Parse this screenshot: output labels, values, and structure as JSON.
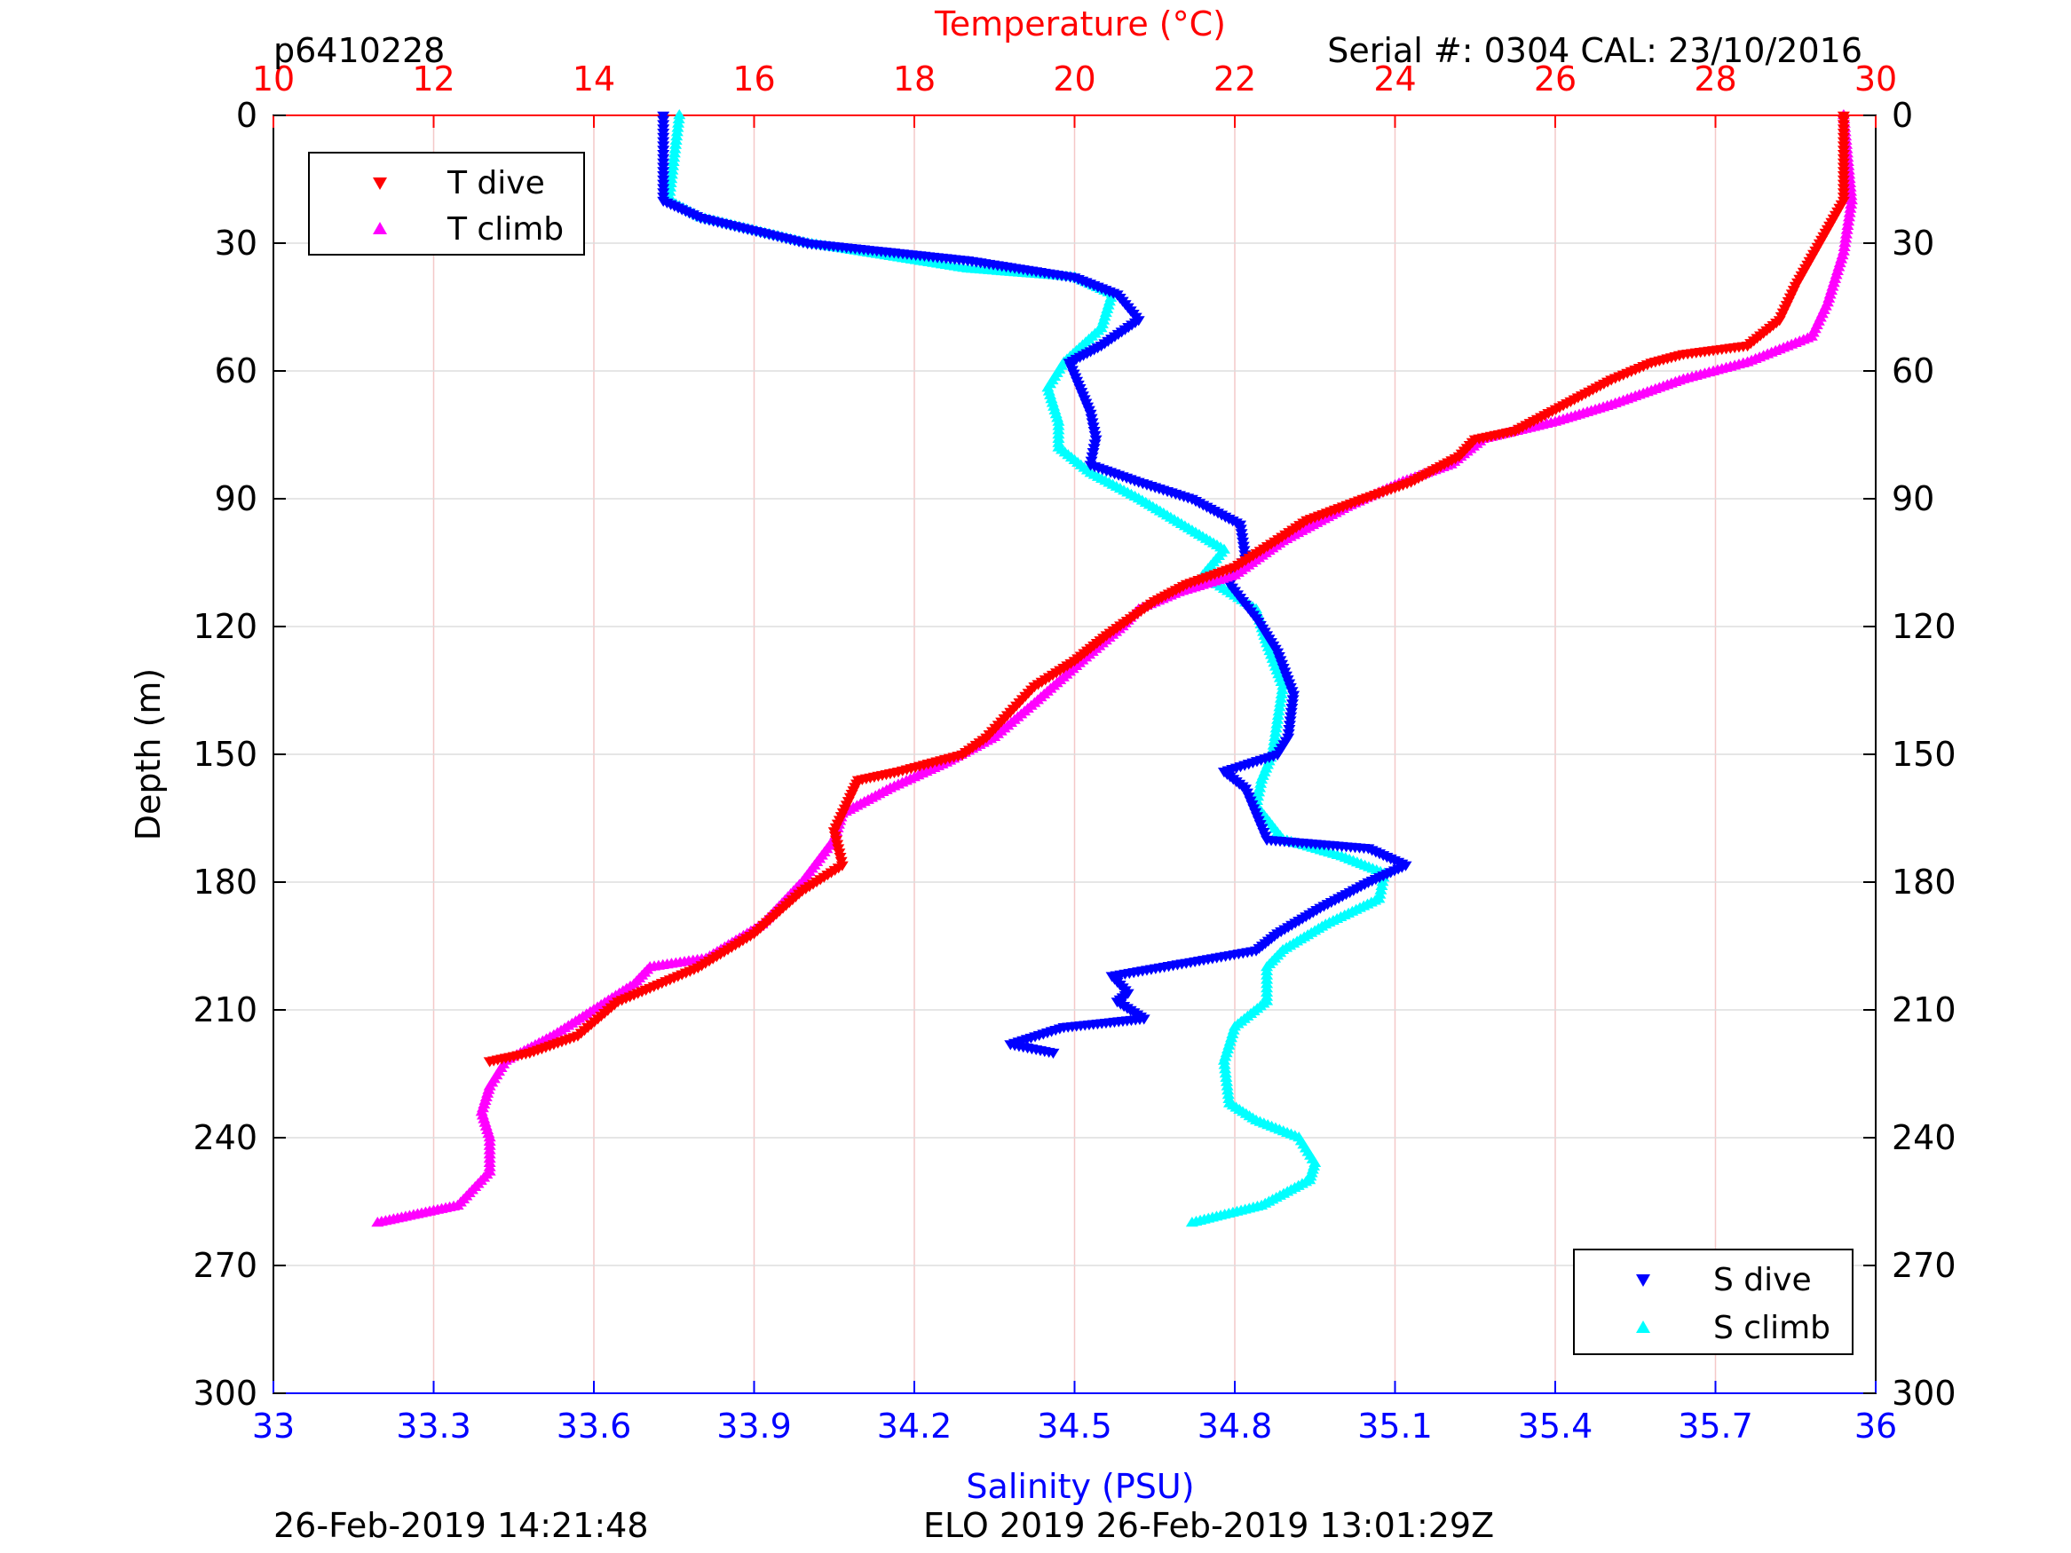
{
  "header": {
    "id": "p6410228",
    "serial": "Serial #: 0304  CAL: 23/10/2016"
  },
  "footer": {
    "left": "26-Feb-2019 14:21:48",
    "center": "ELO 2019 26-Feb-2019 13:01:29Z"
  },
  "colors": {
    "t_dive": "#ff0000",
    "t_climb": "#ff00ff",
    "s_dive": "#0000ff",
    "s_climb": "#00ffff",
    "temp_axis": "#ff0000",
    "sal_axis": "#0000ff"
  },
  "chart_data": {
    "type": "scatter",
    "axes": {
      "temperature": {
        "label": "Temperature (°C)",
        "range": [
          10,
          30
        ],
        "ticks": [
          "10",
          "12",
          "14",
          "16",
          "18",
          "20",
          "22",
          "24",
          "26",
          "28",
          "30"
        ],
        "position": "top"
      },
      "salinity": {
        "label": "Salinity (PSU)",
        "range": [
          33,
          36
        ],
        "ticks": [
          "33",
          "33.3",
          "33.6",
          "33.9",
          "34.2",
          "34.5",
          "34.8",
          "35.1",
          "35.4",
          "35.7",
          "36"
        ],
        "position": "bottom"
      },
      "depth": {
        "label": "Depth (m)",
        "range": [
          0,
          300
        ],
        "reversed": true,
        "ticks": [
          "0",
          "30",
          "60",
          "90",
          "120",
          "150",
          "180",
          "210",
          "240",
          "270",
          "300"
        ]
      }
    },
    "grid": {
      "temperature_vertical": true,
      "depth_horizontal": true
    },
    "legends": [
      {
        "placement": "top-left",
        "entries": [
          "T dive",
          "T climb"
        ]
      },
      {
        "placement": "bottom-right",
        "entries": [
          "S dive",
          "S climb"
        ]
      }
    ],
    "series": [
      {
        "name": "T dive",
        "axis": "temperature",
        "marker": "triangle-down",
        "points": [
          [
            29.6,
            0
          ],
          [
            29.6,
            20
          ],
          [
            29.3,
            30
          ],
          [
            29.0,
            40
          ],
          [
            28.8,
            48
          ],
          [
            28.4,
            54
          ],
          [
            27.6,
            56
          ],
          [
            27.2,
            58
          ],
          [
            26.7,
            62
          ],
          [
            26.1,
            68
          ],
          [
            25.5,
            74
          ],
          [
            25.0,
            76
          ],
          [
            24.8,
            80
          ],
          [
            24.2,
            86
          ],
          [
            23.6,
            90
          ],
          [
            22.9,
            95
          ],
          [
            22.5,
            100
          ],
          [
            22.0,
            106
          ],
          [
            21.4,
            110
          ],
          [
            21.0,
            114
          ],
          [
            20.7,
            118
          ],
          [
            20.4,
            122
          ],
          [
            20.0,
            128
          ],
          [
            19.5,
            134
          ],
          [
            19.2,
            140
          ],
          [
            18.9,
            146
          ],
          [
            18.6,
            150
          ],
          [
            17.8,
            154
          ],
          [
            17.3,
            156
          ],
          [
            17.2,
            160
          ],
          [
            17.0,
            168
          ],
          [
            17.1,
            176
          ],
          [
            16.6,
            182
          ],
          [
            16.0,
            192
          ],
          [
            15.3,
            200
          ],
          [
            14.8,
            204
          ],
          [
            14.3,
            208
          ],
          [
            13.8,
            216
          ],
          [
            13.2,
            220
          ],
          [
            12.7,
            222
          ]
        ]
      },
      {
        "name": "T climb",
        "axis": "temperature",
        "marker": "triangle-up",
        "points": [
          [
            29.6,
            0
          ],
          [
            29.7,
            20
          ],
          [
            29.6,
            32
          ],
          [
            29.4,
            44
          ],
          [
            29.2,
            52
          ],
          [
            28.4,
            58
          ],
          [
            27.6,
            62
          ],
          [
            26.7,
            68
          ],
          [
            26.0,
            72
          ],
          [
            25.1,
            76
          ],
          [
            24.7,
            82
          ],
          [
            24.1,
            86
          ],
          [
            23.4,
            92
          ],
          [
            22.6,
            100
          ],
          [
            22.0,
            108
          ],
          [
            21.3,
            112
          ],
          [
            20.8,
            116
          ],
          [
            20.6,
            120
          ],
          [
            20.1,
            128
          ],
          [
            19.5,
            138
          ],
          [
            19.0,
            146
          ],
          [
            18.4,
            152
          ],
          [
            17.7,
            158
          ],
          [
            17.1,
            164
          ],
          [
            17.0,
            170
          ],
          [
            16.6,
            180
          ],
          [
            16.1,
            190
          ],
          [
            15.4,
            198
          ],
          [
            14.7,
            200
          ],
          [
            14.5,
            204
          ],
          [
            14.0,
            210
          ],
          [
            13.5,
            216
          ],
          [
            12.9,
            222
          ],
          [
            12.7,
            228
          ],
          [
            12.6,
            234
          ],
          [
            12.7,
            240
          ],
          [
            12.7,
            248
          ],
          [
            12.3,
            256
          ],
          [
            11.8,
            258
          ],
          [
            11.3,
            260
          ]
        ]
      },
      {
        "name": "S dive",
        "axis": "salinity",
        "marker": "triangle-down",
        "points": [
          [
            33.73,
            0
          ],
          [
            33.73,
            20
          ],
          [
            33.8,
            24
          ],
          [
            34.0,
            30
          ],
          [
            34.3,
            34
          ],
          [
            34.5,
            38
          ],
          [
            34.58,
            42
          ],
          [
            34.62,
            48
          ],
          [
            34.55,
            54
          ],
          [
            34.49,
            58
          ],
          [
            34.51,
            64
          ],
          [
            34.53,
            70
          ],
          [
            34.54,
            76
          ],
          [
            34.53,
            82
          ],
          [
            34.62,
            86
          ],
          [
            34.72,
            90
          ],
          [
            34.81,
            96
          ],
          [
            34.82,
            104
          ],
          [
            34.79,
            110
          ],
          [
            34.84,
            118
          ],
          [
            34.88,
            126
          ],
          [
            34.91,
            136
          ],
          [
            34.9,
            146
          ],
          [
            34.88,
            150
          ],
          [
            34.78,
            154
          ],
          [
            34.82,
            158
          ],
          [
            34.86,
            170
          ],
          [
            35.05,
            172
          ],
          [
            35.12,
            176
          ],
          [
            35.05,
            180
          ],
          [
            34.96,
            186
          ],
          [
            34.88,
            192
          ],
          [
            34.84,
            196
          ],
          [
            34.57,
            202
          ],
          [
            34.6,
            206
          ],
          [
            34.58,
            208
          ],
          [
            34.63,
            212
          ],
          [
            34.48,
            214
          ],
          [
            34.38,
            218
          ],
          [
            34.46,
            220
          ]
        ]
      },
      {
        "name": "S climb",
        "axis": "salinity",
        "marker": "triangle-up",
        "points": [
          [
            33.76,
            0
          ],
          [
            33.75,
            10
          ],
          [
            33.74,
            20
          ],
          [
            33.8,
            24
          ],
          [
            34.0,
            30
          ],
          [
            34.3,
            36
          ],
          [
            34.5,
            38
          ],
          [
            34.57,
            42
          ],
          [
            34.55,
            50
          ],
          [
            34.48,
            58
          ],
          [
            34.45,
            64
          ],
          [
            34.47,
            72
          ],
          [
            34.47,
            78
          ],
          [
            34.53,
            84
          ],
          [
            34.62,
            90
          ],
          [
            34.7,
            96
          ],
          [
            34.78,
            102
          ],
          [
            34.74,
            108
          ],
          [
            34.84,
            116
          ],
          [
            34.86,
            124
          ],
          [
            34.89,
            134
          ],
          [
            34.88,
            142
          ],
          [
            34.87,
            150
          ],
          [
            34.85,
            156
          ],
          [
            34.84,
            162
          ],
          [
            34.89,
            170
          ],
          [
            35.0,
            174
          ],
          [
            35.08,
            178
          ],
          [
            35.07,
            184
          ],
          [
            34.97,
            190
          ],
          [
            34.89,
            196
          ],
          [
            34.86,
            200
          ],
          [
            34.86,
            208
          ],
          [
            34.8,
            214
          ],
          [
            34.78,
            222
          ],
          [
            34.79,
            232
          ],
          [
            34.84,
            236
          ],
          [
            34.92,
            240
          ],
          [
            34.95,
            246
          ],
          [
            34.94,
            250
          ],
          [
            34.85,
            256
          ],
          [
            34.72,
            260
          ]
        ]
      }
    ]
  }
}
